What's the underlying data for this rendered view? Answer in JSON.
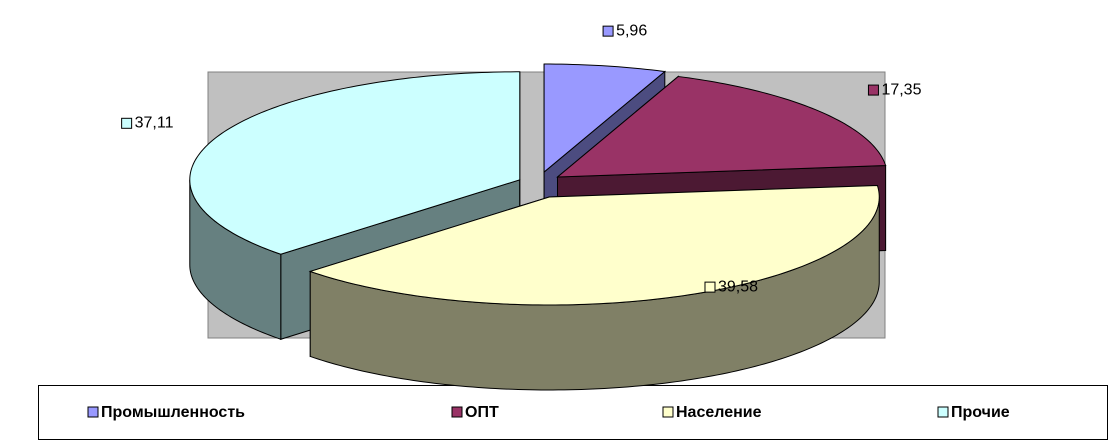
{
  "chart_data": {
    "type": "pie3d",
    "categories": [
      "Промышленность",
      "ОПТ",
      "Население",
      "Прочие"
    ],
    "values": [
      5.96,
      17.35,
      39.58,
      37.11
    ],
    "value_labels": [
      "5,96",
      "17,35",
      "39,58",
      "37,11"
    ],
    "colors": [
      "#9999ff",
      "#993366",
      "#ffffcc",
      "#ccffff"
    ],
    "side_colors": [
      "#4c4c80",
      "#4c1933",
      "#808066",
      "#668080"
    ],
    "legend": "bottom"
  }
}
